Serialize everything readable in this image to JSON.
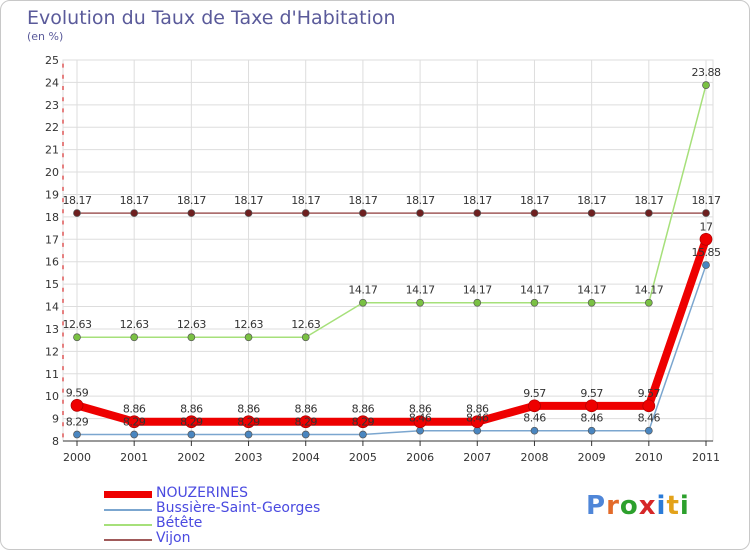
{
  "title": "Evolution du Taux de Taxe d'Habitation",
  "unit_label": "(en %)",
  "logo_text": "Proxiti",
  "colors": {
    "title": "#5a5a9a",
    "grid": "#dddddd",
    "axis_tick": "#cc0000",
    "legend_text": "#4a4ae0"
  },
  "chart_data": {
    "type": "line",
    "title": "Evolution du Taux de Taxe d'Habitation",
    "ylabel": "(en %)",
    "xlabel": "",
    "x": [
      "2000",
      "2001",
      "2002",
      "2003",
      "2004",
      "2005",
      "2006",
      "2007",
      "2008",
      "2009",
      "2010",
      "2011"
    ],
    "ylim": [
      8,
      25
    ],
    "yticks": [
      8,
      9,
      10,
      11,
      12,
      13,
      14,
      15,
      16,
      17,
      18,
      19,
      20,
      21,
      22,
      23,
      24,
      25
    ],
    "grid": true,
    "series": [
      {
        "name": "NOUZERINES",
        "color": "#ee0000",
        "marker_fill": "#ee0000",
        "thick": true,
        "values": [
          9.59,
          8.86,
          8.86,
          8.86,
          8.86,
          8.86,
          8.86,
          8.86,
          9.57,
          9.57,
          9.57,
          17
        ],
        "labels": [
          "9.59",
          "8.86",
          "8.86",
          "8.86",
          "8.86",
          "8.86",
          "8.86",
          "8.86",
          "9.57",
          "9.57",
          "9.57",
          "17"
        ]
      },
      {
        "name": "Bussière-Saint-Georges",
        "color": "#7ba6cf",
        "marker_fill": "#4a86c0",
        "thick": false,
        "values": [
          8.29,
          8.29,
          8.29,
          8.29,
          8.29,
          8.29,
          8.46,
          8.46,
          8.46,
          8.46,
          8.46,
          15.85
        ],
        "labels": [
          "8.29",
          "8.29",
          "8.29",
          "8.29",
          "8.29",
          "8.29",
          "8.46",
          "8.46",
          "8.46",
          "8.46",
          "8.46",
          "15.85"
        ]
      },
      {
        "name": "Bétête",
        "color": "#a6e07a",
        "marker_fill": "#7ac143",
        "thick": false,
        "values": [
          12.63,
          12.63,
          12.63,
          12.63,
          12.63,
          14.17,
          14.17,
          14.17,
          14.17,
          14.17,
          14.17,
          23.88
        ],
        "labels": [
          "12.63",
          "12.63",
          "12.63",
          "12.63",
          "12.63",
          "14.17",
          "14.17",
          "14.17",
          "14.17",
          "14.17",
          "14.17",
          "23.88"
        ]
      },
      {
        "name": "Vijon",
        "color": "#a05a5a",
        "marker_fill": "#6e1f1f",
        "thick": false,
        "values": [
          18.17,
          18.17,
          18.17,
          18.17,
          18.17,
          18.17,
          18.17,
          18.17,
          18.17,
          18.17,
          18.17,
          18.17
        ],
        "labels": [
          "18.17",
          "18.17",
          "18.17",
          "18.17",
          "18.17",
          "18.17",
          "18.17",
          "18.17",
          "18.17",
          "18.17",
          "18.17",
          "18.17"
        ]
      }
    ],
    "legend": [
      "NOUZERINES",
      "Bussière-Saint-Georges",
      "Bétête",
      "Vijon"
    ],
    "legend_position": "bottom-left"
  }
}
